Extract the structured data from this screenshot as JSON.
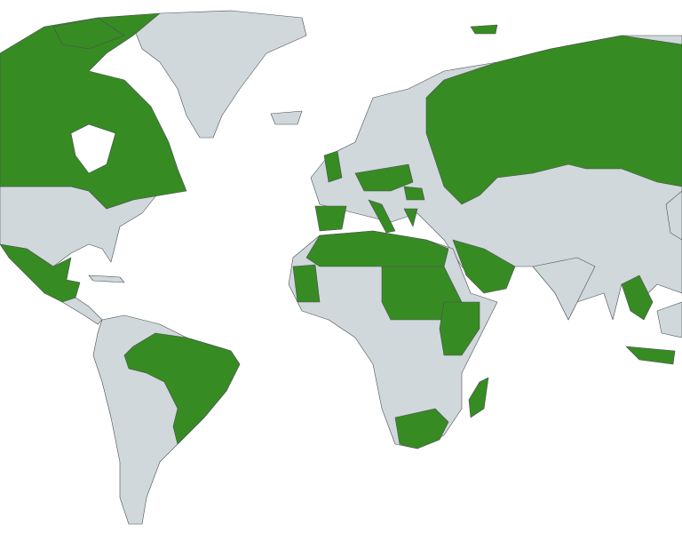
{
  "map": {
    "colors": {
      "background": "#ffffff",
      "base_land": "#d0d8dc",
      "highlight": "#378b23",
      "border": "#4a4f52"
    }
  }
}
